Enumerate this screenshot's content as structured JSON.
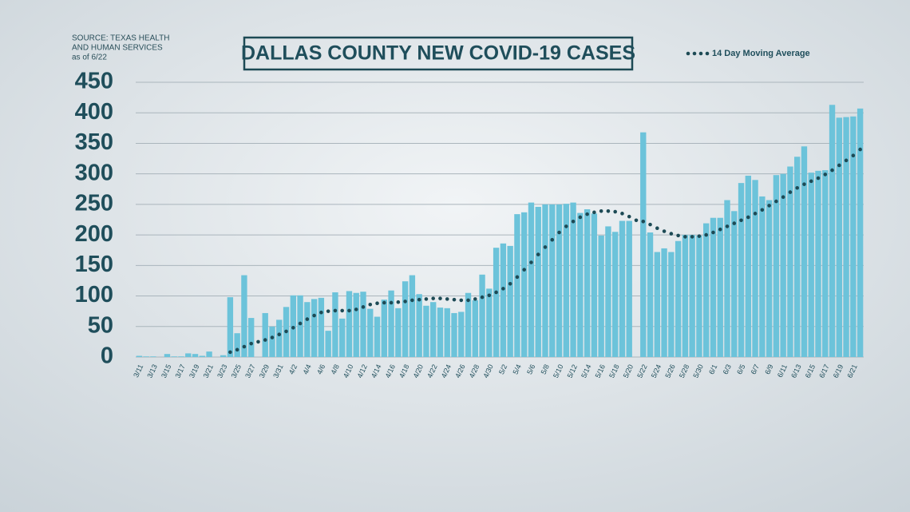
{
  "chart_data": {
    "type": "bar",
    "title": "DALLAS COUNTY NEW COVID-19 CASES",
    "source": [
      "SOURCE: TEXAS HEALTH",
      "AND HUMAN SERVICES",
      "as of 6/22"
    ],
    "categories": [
      "3/11",
      null,
      "3/13",
      null,
      "3/15",
      null,
      "3/17",
      null,
      "3/19",
      null,
      "3/21",
      null,
      "3/23",
      null,
      "3/25",
      null,
      "3/27",
      null,
      "3/29",
      null,
      "3/31",
      null,
      "4/2",
      null,
      "4/4",
      null,
      "4/6",
      null,
      "4/8",
      null,
      "4/10",
      null,
      "4/12",
      null,
      "4/14",
      null,
      "4/16",
      null,
      "4/18",
      null,
      "4/20",
      null,
      "4/22",
      null,
      "4/24",
      null,
      "4/26",
      null,
      "4/28",
      null,
      "4/30",
      null,
      "5/2",
      null,
      "5/4",
      null,
      "5/6",
      null,
      "5/8",
      null,
      "5/10",
      null,
      "5/12",
      null,
      "5/14",
      null,
      "5/16",
      null,
      "5/18",
      null,
      "5/20",
      null,
      "5/22",
      null,
      "5/24",
      null,
      "5/26",
      null,
      "5/28",
      null,
      "5/30",
      null,
      "6/1",
      null,
      "6/3",
      null,
      "6/5",
      null,
      "6/7",
      null,
      "6/9",
      null,
      "6/11",
      null,
      "6/13",
      null,
      "6/15",
      null,
      "6/17",
      null,
      "6/19",
      null,
      "6/21",
      null
    ],
    "values": [
      2,
      1,
      1,
      0,
      5,
      1,
      1,
      6,
      5,
      2,
      9,
      0,
      3,
      98,
      39,
      134,
      64,
      0,
      72,
      50,
      61,
      82,
      101,
      101,
      90,
      95,
      97,
      43,
      106,
      63,
      108,
      105,
      107,
      79,
      66,
      94,
      109,
      80,
      124,
      134,
      103,
      84,
      90,
      81,
      80,
      72,
      74,
      105,
      93,
      135,
      112,
      179,
      186,
      182,
      234,
      237,
      253,
      246,
      250,
      250,
      250,
      251,
      253,
      236,
      242,
      235,
      199,
      214,
      205,
      223,
      223,
      0,
      368,
      204,
      172,
      178,
      172,
      190,
      200,
      200,
      199,
      219,
      228,
      228,
      257,
      239,
      285,
      297,
      290,
      263,
      257,
      298,
      300,
      312,
      328,
      345,
      302,
      305,
      306,
      413,
      392,
      393,
      394,
      407
    ],
    "color": "#6cc3da",
    "series": [
      {
        "name": "14 Day Moving Average",
        "color": "#1d4a55",
        "values": [
          null,
          null,
          null,
          null,
          null,
          null,
          null,
          null,
          null,
          null,
          null,
          null,
          null,
          8,
          12,
          17,
          22,
          25,
          28,
          32,
          37,
          42,
          48,
          55,
          62,
          68,
          73,
          75,
          76,
          76,
          76,
          78,
          82,
          86,
          88,
          89,
          89,
          90,
          91,
          93,
          94,
          95,
          96,
          96,
          95,
          94,
          93,
          93,
          95,
          98,
          101,
          106,
          112,
          120,
          131,
          143,
          155,
          168,
          180,
          192,
          204,
          214,
          222,
          229,
          234,
          237,
          239,
          239,
          238,
          235,
          230,
          224,
          222,
          217,
          211,
          206,
          202,
          199,
          197,
          197,
          198,
          200,
          204,
          209,
          214,
          219,
          224,
          229,
          235,
          241,
          248,
          255,
          262,
          270,
          277,
          283,
          288,
          293,
          299,
          306,
          314,
          322,
          330,
          340
        ]
      }
    ],
    "ylim": [
      0,
      450
    ],
    "yticks": [
      0,
      50,
      100,
      150,
      200,
      250,
      300,
      350,
      400,
      450
    ],
    "grid": true
  }
}
